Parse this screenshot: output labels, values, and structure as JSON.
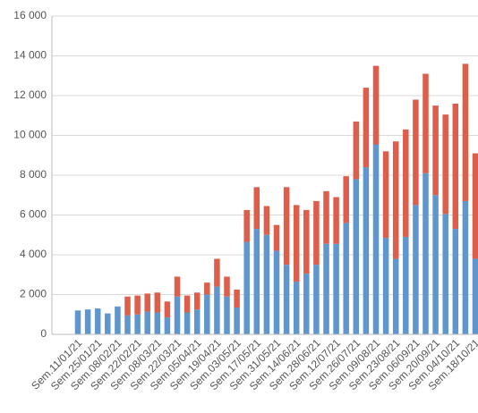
{
  "chart_data": {
    "type": "stacked-bar",
    "categories": [
      "Sem.11/01/21",
      null,
      "Sem.25/01/21",
      null,
      "Sem.08/02/21",
      null,
      "Sem.22/02/21",
      null,
      "Sem.08/03/21",
      null,
      "Sem.22/03/21",
      null,
      "Sem.05/04/21",
      null,
      "Sem.19/04/21",
      null,
      "Sem.03/05/21",
      null,
      "Sem.17/05/21",
      null,
      "Sem.31/05/21",
      null,
      "Sem.14/06/21",
      null,
      "Sem.28/06/21",
      null,
      "Sem.12/07/21",
      null,
      "Sem.26/07/21",
      null,
      "Sem.09/08/21",
      null,
      "Sem.23/08/21",
      null,
      "Sem.06/09/21",
      null,
      "Sem.20/09/21",
      null,
      "Sem.04/10/21",
      null,
      "Sem.18/10/21"
    ],
    "series": [
      {
        "color": "#5f96cd",
        "values": [
          1200,
          1250,
          1300,
          1050,
          1400,
          950,
          1000,
          1150,
          1100,
          850,
          1900,
          1100,
          1250,
          2000,
          2400,
          1900,
          1350,
          4650,
          5300,
          5000,
          4200,
          3500,
          2650,
          3050,
          3500,
          4550,
          4550,
          5600,
          7800,
          8400,
          9550,
          4850,
          3800,
          4900,
          6500,
          8100,
          7000,
          6050,
          5300,
          6700,
          3800
        ]
      },
      {
        "color": "#dd5e4a",
        "values": [
          0,
          0,
          0,
          0,
          0,
          950,
          950,
          900,
          1000,
          800,
          1000,
          850,
          850,
          600,
          1400,
          1000,
          900,
          1600,
          2100,
          1450,
          1300,
          3900,
          3850,
          3200,
          3200,
          2650,
          2350,
          2350,
          2900,
          4000,
          3950,
          4350,
          5900,
          5400,
          5300,
          5000,
          4500,
          5000,
          6300,
          6900,
          5300
        ]
      }
    ],
    "ylim": [
      0,
      16000
    ],
    "yticks": [
      0,
      {
        "value": 2000,
        "label": "2 000"
      },
      {
        "value": 4000,
        "label": "4 000"
      },
      {
        "value": 6000,
        "label": "6 000"
      },
      {
        "value": 8000,
        "label": "8 000"
      },
      {
        "value": 10000,
        "label": "10 000"
      },
      {
        "value": 12000,
        "label": "12 000"
      },
      {
        "value": 14000,
        "label": "14 000"
      },
      {
        "value": 16000,
        "label": "16 000"
      }
    ],
    "grid": true
  }
}
